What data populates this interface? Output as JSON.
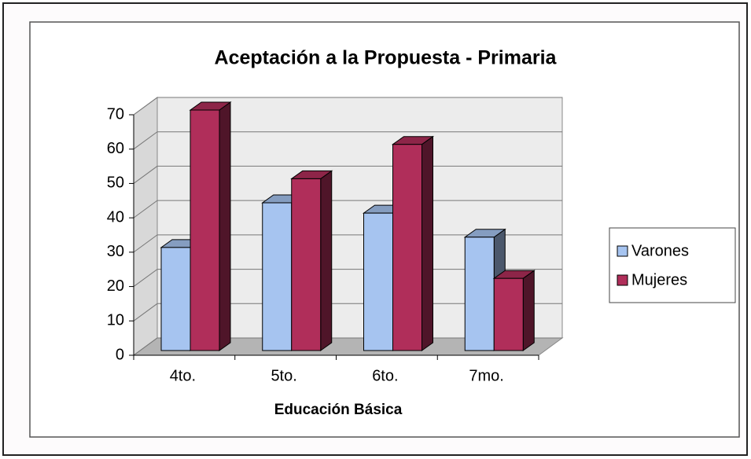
{
  "chart_data": {
    "type": "bar3d",
    "title": "Aceptación a la Propuesta - Primaria",
    "x_label": "Educación Básica",
    "categories": [
      "4to.",
      "5to.",
      "6to.",
      "7mo."
    ],
    "series": [
      {
        "name": "Varones",
        "color": "#a6c4f0",
        "values": [
          30,
          43,
          40,
          33
        ]
      },
      {
        "name": "Mujeres",
        "color": "#b02e5a",
        "values": [
          70,
          50,
          60,
          21
        ]
      }
    ],
    "ylim": [
      0,
      70
    ],
    "yticks": [
      0,
      10,
      20,
      30,
      40,
      50,
      60,
      70
    ],
    "grid": true,
    "legend": "right"
  }
}
